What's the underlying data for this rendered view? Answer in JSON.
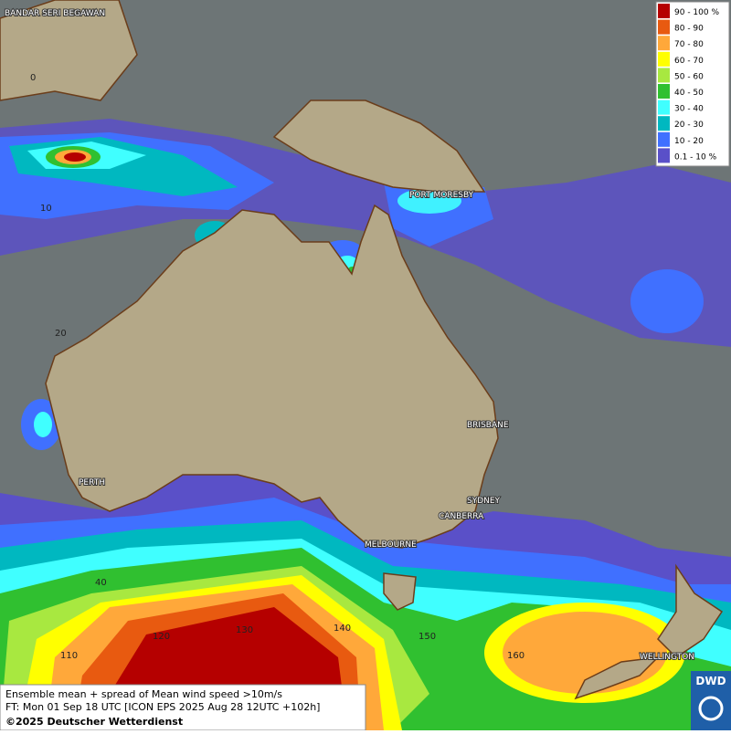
{
  "legend": {
    "items": [
      {
        "label": "90 - 100 %",
        "color": "#b50000"
      },
      {
        "label": "80 - 90",
        "color": "#e85a10"
      },
      {
        "label": "70 - 80",
        "color": "#ffa83a"
      },
      {
        "label": "60 - 70",
        "color": "#ffff00"
      },
      {
        "label": "50 - 60",
        "color": "#a8e840"
      },
      {
        "label": "40 - 50",
        "color": "#30c030"
      },
      {
        "label": "30 - 40",
        "color": "#40ffff"
      },
      {
        "label": "20 - 30",
        "color": "#00b8c0"
      },
      {
        "label": "10 - 20",
        "color": "#4070ff"
      },
      {
        "label": "0.1 - 10 %",
        "color": "#5a50c8"
      }
    ]
  },
  "cities": [
    "BANDAR SERI BEGAWAN",
    "PORT MORESBY",
    "BRISBANE",
    "SYDNEY",
    "CANBERRA",
    "MELBOURNE",
    "PERTH",
    "WELLINGTON"
  ],
  "grid_labels": [
    "0",
    "10",
    "20",
    "40",
    "110",
    "120",
    "130",
    "140",
    "150",
    "160"
  ],
  "footer": {
    "line1": "Ensemble mean + spread of Mean wind speed >10m/s",
    "line2": "FT: Mon 01 Sep 18 UTC [ICON EPS 2025 Aug 28 12UTC +102h]",
    "line3": "©2025 Deutscher Wetterdienst"
  },
  "logo": "DWD"
}
